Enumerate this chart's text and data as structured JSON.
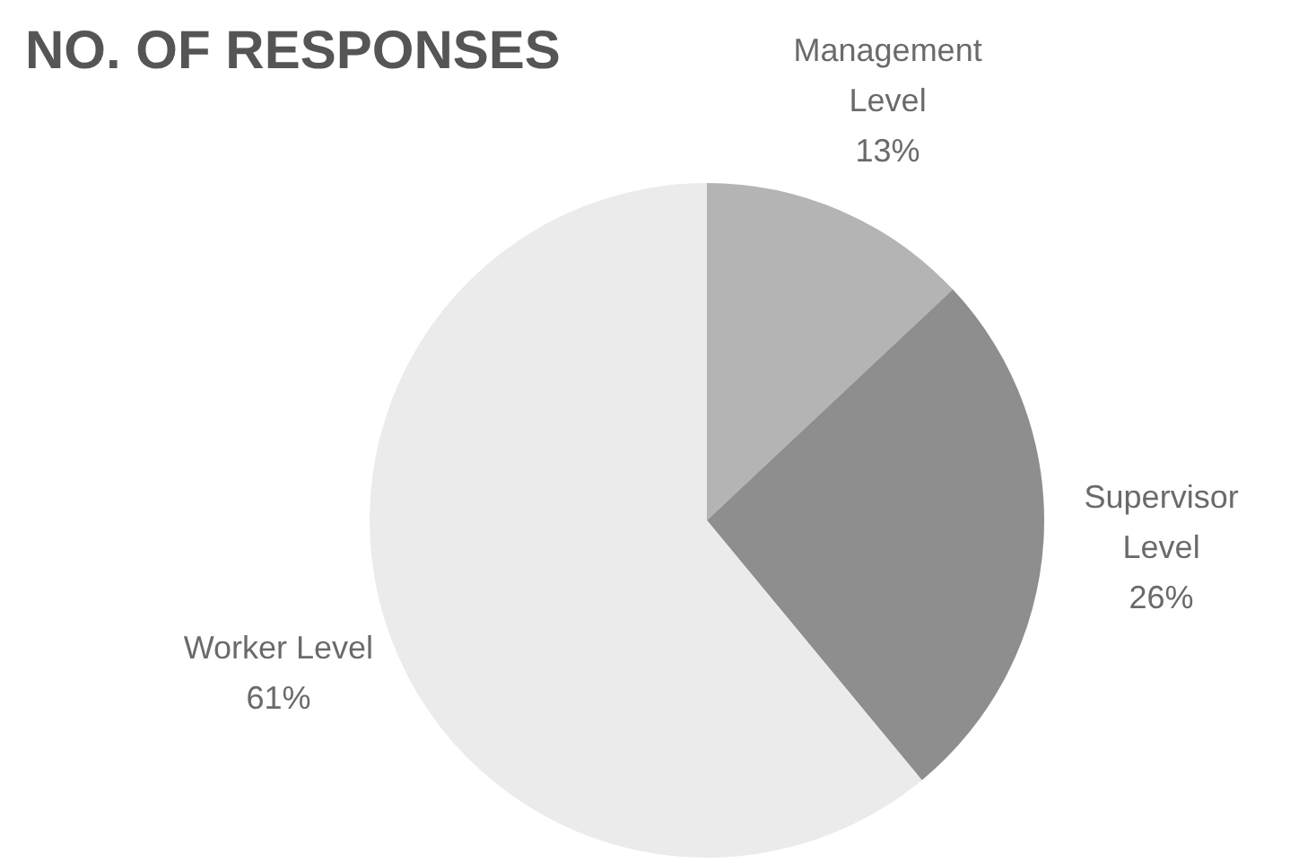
{
  "chart_data": {
    "type": "pie",
    "title": "NO. OF RESPONSES",
    "categories": [
      "Management Level",
      "Supervisor Level",
      "Worker Level"
    ],
    "values": [
      13,
      26,
      61
    ],
    "colors": [
      "#b4b4b4",
      "#8e8e8e",
      "#ebebeb"
    ],
    "value_labels": [
      "13%",
      "26%",
      "61%"
    ],
    "legend": false
  }
}
